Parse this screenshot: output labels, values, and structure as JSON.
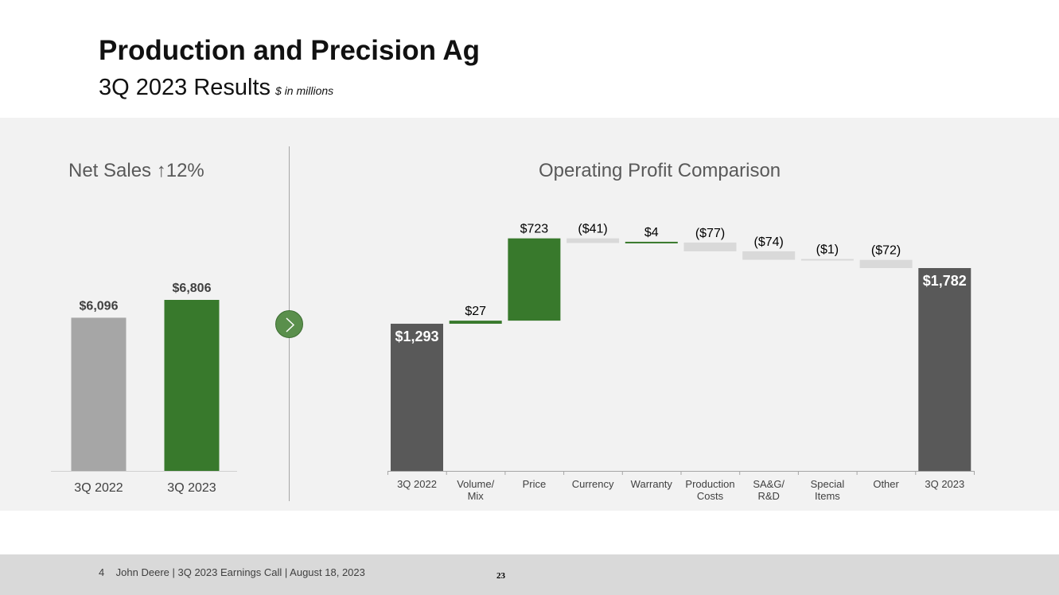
{
  "header": {
    "title": "Production and Precision Ag",
    "subtitle": "3Q 2023 Results",
    "units": "$ in millions"
  },
  "sales": {
    "title": "Net Sales",
    "change_arrow": "↑",
    "change": "12%"
  },
  "operating": {
    "title": "Operating Profit Comparison"
  },
  "footer": {
    "text": "4    John Deere | 3Q 2023 Earnings Call | August 18, 2023",
    "page": "23"
  },
  "colors": {
    "green": "#38792c",
    "gray_bar": "#a6a6a6",
    "dark_bar": "#595959",
    "negative": "#d9d9d9"
  },
  "chart_data": [
    {
      "type": "bar",
      "title": "Net Sales ↑12%",
      "categories": [
        "3Q 2022",
        "3Q 2023"
      ],
      "values": [
        6096,
        6806
      ],
      "labels": [
        "$6,096",
        "$6,806"
      ],
      "colors": [
        "#a6a6a6",
        "#38792c"
      ],
      "ylim": [
        0,
        8000
      ]
    },
    {
      "type": "bar",
      "subtype": "waterfall",
      "title": "Operating Profit Comparison",
      "categories": [
        "3Q 2022",
        "Volume/\nMix",
        "Price",
        "Currency",
        "Warranty",
        "Production\nCosts",
        "SA&G/\nR&D",
        "Special\nItems",
        "Other",
        "3Q 2023"
      ],
      "values": [
        1293,
        27,
        723,
        -41,
        4,
        -77,
        -74,
        -1,
        -72,
        1782
      ],
      "kinds": [
        "total",
        "delta",
        "delta",
        "delta",
        "delta",
        "delta",
        "delta",
        "delta",
        "delta",
        "total"
      ],
      "labels": [
        "$1,293",
        "$27",
        "$723",
        "($41)",
        "$4",
        "($77)",
        "($74)",
        "($1)",
        "($72)",
        "$1,782"
      ],
      "ylim": [
        0,
        2100
      ]
    }
  ]
}
